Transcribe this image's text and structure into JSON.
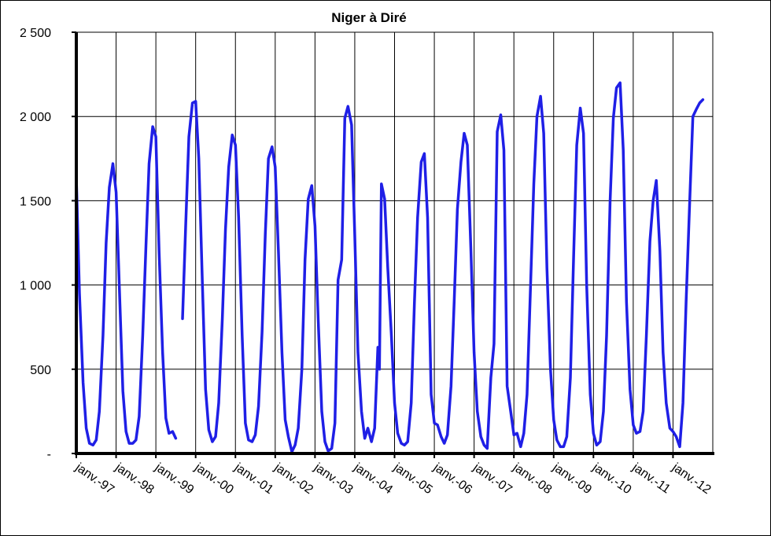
{
  "chart_data": {
    "type": "line",
    "title": "Niger à Diré",
    "xlabel": "",
    "ylabel": "",
    "ylim": [
      0,
      2500
    ],
    "y_ticks": [
      0,
      500,
      1000,
      1500,
      2000,
      2500
    ],
    "y_tick_labels": [
      "-",
      "500",
      "1 000",
      "1 500",
      "2 000",
      "2 500"
    ],
    "x_tick_labels": [
      "janv.-97",
      "janv.-98",
      "janv.-99",
      "janv.-00",
      "janv.-01",
      "janv.-02",
      "janv.-03",
      "janv.-04",
      "janv.-05",
      "janv.-06",
      "janv.-07",
      "janv.-08",
      "janv.-09",
      "janv.-10",
      "janv.-11",
      "janv.-12"
    ],
    "x_range_years": [
      1997,
      2013
    ],
    "grid": true,
    "line_color": "#1f1fe6",
    "series": [
      {
        "segments": [
          [
            [
              1997.0,
              1640
            ],
            [
              1997.08,
              950
            ],
            [
              1997.17,
              420
            ],
            [
              1997.25,
              150
            ],
            [
              1997.33,
              60
            ],
            [
              1997.42,
              50
            ],
            [
              1997.5,
              80
            ],
            [
              1997.58,
              250
            ],
            [
              1997.67,
              700
            ],
            [
              1997.75,
              1250
            ],
            [
              1997.83,
              1580
            ],
            [
              1997.92,
              1720
            ],
            [
              1998.0,
              1550
            ],
            [
              1998.08,
              1000
            ],
            [
              1998.17,
              370
            ],
            [
              1998.25,
              130
            ],
            [
              1998.33,
              60
            ],
            [
              1998.42,
              60
            ],
            [
              1998.5,
              80
            ],
            [
              1998.58,
              220
            ],
            [
              1998.67,
              700
            ],
            [
              1998.75,
              1230
            ],
            [
              1998.83,
              1720
            ],
            [
              1998.92,
              1940
            ],
            [
              1999.0,
              1880
            ],
            [
              1999.08,
              1200
            ],
            [
              1999.17,
              600
            ],
            [
              1999.25,
              210
            ],
            [
              1999.33,
              120
            ],
            [
              1999.42,
              130
            ],
            [
              1999.5,
              90
            ]
          ],
          [
            [
              1999.67,
              800
            ],
            [
              1999.75,
              1350
            ],
            [
              1999.83,
              1880
            ],
            [
              1999.92,
              2080
            ],
            [
              2000.0,
              2090
            ],
            [
              2000.08,
              1750
            ],
            [
              2000.17,
              1000
            ],
            [
              2000.25,
              380
            ],
            [
              2000.33,
              140
            ],
            [
              2000.42,
              70
            ],
            [
              2000.5,
              100
            ],
            [
              2000.58,
              300
            ],
            [
              2000.67,
              800
            ],
            [
              2000.75,
              1330
            ],
            [
              2000.83,
              1700
            ],
            [
              2000.92,
              1890
            ],
            [
              2001.0,
              1830
            ],
            [
              2001.08,
              1400
            ],
            [
              2001.17,
              700
            ],
            [
              2001.25,
              180
            ],
            [
              2001.33,
              80
            ],
            [
              2001.42,
              70
            ],
            [
              2001.5,
              110
            ],
            [
              2001.58,
              280
            ],
            [
              2001.67,
              720
            ],
            [
              2001.75,
              1300
            ],
            [
              2001.83,
              1750
            ],
            [
              2001.92,
              1820
            ],
            [
              2002.0,
              1700
            ],
            [
              2002.08,
              1200
            ],
            [
              2002.17,
              600
            ],
            [
              2002.25,
              200
            ],
            [
              2002.33,
              100
            ],
            [
              2002.42,
              10
            ],
            [
              2002.5,
              50
            ],
            [
              2002.58,
              150
            ],
            [
              2002.67,
              500
            ],
            [
              2002.75,
              1150
            ],
            [
              2002.83,
              1510
            ],
            [
              2002.92,
              1590
            ],
            [
              2003.0,
              1350
            ],
            [
              2003.08,
              800
            ],
            [
              2003.17,
              250
            ],
            [
              2003.25,
              70
            ],
            [
              2003.33,
              15
            ],
            [
              2003.42,
              30
            ],
            [
              2003.5,
              180
            ],
            [
              2003.58,
              1030
            ],
            [
              2003.67,
              1150
            ],
            [
              2003.75,
              1990
            ],
            [
              2003.83,
              2060
            ],
            [
              2003.92,
              1950
            ],
            [
              2004.0,
              1300
            ],
            [
              2004.08,
              600
            ],
            [
              2004.17,
              250
            ],
            [
              2004.25,
              90
            ],
            [
              2004.33,
              150
            ],
            [
              2004.42,
              70
            ],
            [
              2004.5,
              150
            ],
            [
              2004.58,
              630
            ],
            [
              2004.62,
              500
            ],
            [
              2004.67,
              1600
            ],
            [
              2004.75,
              1510
            ],
            [
              2004.83,
              1100
            ],
            [
              2004.92,
              700
            ],
            [
              2005.0,
              300
            ],
            [
              2005.08,
              120
            ],
            [
              2005.17,
              60
            ],
            [
              2005.25,
              50
            ],
            [
              2005.33,
              70
            ],
            [
              2005.42,
              300
            ],
            [
              2005.5,
              900
            ],
            [
              2005.58,
              1400
            ],
            [
              2005.67,
              1730
            ],
            [
              2005.75,
              1780
            ],
            [
              2005.83,
              1400
            ],
            [
              2005.92,
              350
            ],
            [
              2006.0,
              180
            ],
            [
              2006.08,
              170
            ],
            [
              2006.17,
              100
            ],
            [
              2006.25,
              60
            ],
            [
              2006.33,
              110
            ],
            [
              2006.42,
              400
            ],
            [
              2006.5,
              900
            ],
            [
              2006.58,
              1450
            ],
            [
              2006.67,
              1730
            ],
            [
              2006.75,
              1900
            ],
            [
              2006.83,
              1830
            ],
            [
              2006.92,
              1200
            ],
            [
              2007.0,
              600
            ],
            [
              2007.08,
              250
            ],
            [
              2007.17,
              100
            ],
            [
              2007.25,
              50
            ],
            [
              2007.33,
              30
            ],
            [
              2007.42,
              450
            ],
            [
              2007.5,
              650
            ],
            [
              2007.58,
              1910
            ],
            [
              2007.67,
              2010
            ],
            [
              2007.75,
              1800
            ],
            [
              2007.83,
              400
            ],
            [
              2007.92,
              250
            ],
            [
              2008.0,
              110
            ],
            [
              2008.08,
              120
            ],
            [
              2008.17,
              40
            ],
            [
              2008.25,
              120
            ],
            [
              2008.33,
              350
            ],
            [
              2008.42,
              1000
            ],
            [
              2008.5,
              1600
            ],
            [
              2008.58,
              2000
            ],
            [
              2008.67,
              2120
            ],
            [
              2008.75,
              1900
            ],
            [
              2008.83,
              1100
            ],
            [
              2008.92,
              500
            ],
            [
              2009.0,
              200
            ],
            [
              2009.08,
              80
            ],
            [
              2009.17,
              40
            ],
            [
              2009.25,
              40
            ],
            [
              2009.33,
              100
            ],
            [
              2009.42,
              450
            ],
            [
              2009.5,
              1150
            ],
            [
              2009.58,
              1830
            ],
            [
              2009.67,
              2050
            ],
            [
              2009.75,
              1900
            ],
            [
              2009.83,
              1000
            ],
            [
              2009.92,
              350
            ],
            [
              2010.0,
              120
            ],
            [
              2010.08,
              50
            ],
            [
              2010.17,
              70
            ],
            [
              2010.25,
              250
            ],
            [
              2010.33,
              700
            ],
            [
              2010.42,
              1500
            ],
            [
              2010.5,
              1990
            ],
            [
              2010.58,
              2170
            ],
            [
              2010.67,
              2200
            ],
            [
              2010.75,
              1800
            ],
            [
              2010.83,
              900
            ],
            [
              2010.92,
              380
            ],
            [
              2011.0,
              170
            ],
            [
              2011.08,
              120
            ],
            [
              2011.17,
              130
            ],
            [
              2011.25,
              250
            ],
            [
              2011.33,
              700
            ],
            [
              2011.42,
              1260
            ],
            [
              2011.5,
              1500
            ],
            [
              2011.58,
              1620
            ],
            [
              2011.67,
              1200
            ],
            [
              2011.75,
              600
            ],
            [
              2011.83,
              300
            ],
            [
              2011.92,
              150
            ],
            [
              2012.0,
              130
            ],
            [
              2012.08,
              100
            ],
            [
              2012.17,
              40
            ],
            [
              2012.25,
              300
            ],
            [
              2012.33,
              900
            ],
            [
              2012.42,
              1500
            ],
            [
              2012.5,
              2000
            ],
            [
              2012.58,
              2040
            ],
            [
              2012.67,
              2080
            ],
            [
              2012.75,
              2100
            ]
          ]
        ]
      }
    ]
  }
}
